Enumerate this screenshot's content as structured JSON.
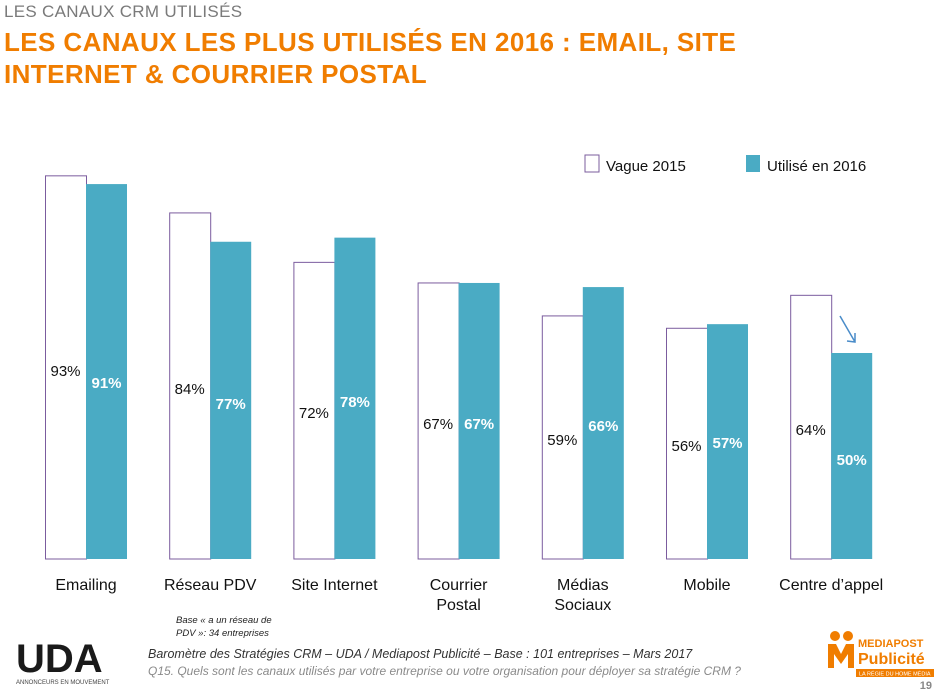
{
  "header": {
    "subtitle": "LES CANAUX CRM UTILISÉS",
    "title": "LES  CANAUX LES PLUS UTILISÉS EN 2016 : EMAIL, SITE\nINTERNET & COURRIER POSTAL"
  },
  "colors": {
    "accent": "#f07d00",
    "bar2016": "#4aabc4",
    "bar2015_border": "#7b5c9e",
    "label2016": "#ffffff",
    "arrow": "#4a8cc9"
  },
  "chart_data": {
    "type": "bar",
    "title": "",
    "categories": [
      "Emailing",
      "Réseau PDV",
      "Site Internet",
      "Courrier\nPostal",
      "Médias\nSociaux",
      "Mobile",
      "Centre d’appel"
    ],
    "series": [
      {
        "name": "Vague 2015",
        "values": [
          93,
          84,
          72,
          67,
          59,
          56,
          64
        ],
        "labels": [
          "93%",
          "84%",
          "72%",
          "67%",
          "59%",
          "56%",
          "64%"
        ]
      },
      {
        "name": "Utilisé en 2016",
        "values": [
          91,
          77,
          78,
          67,
          66,
          57,
          50
        ],
        "labels": [
          "91%",
          "77%",
          "78%",
          "67%",
          "66%",
          "57%",
          "50%"
        ]
      }
    ],
    "ylim": [
      0,
      100
    ],
    "legend_position": "top-right",
    "grid": false,
    "annotations": [
      "down-arrow on Centre d’appel"
    ]
  },
  "footer": {
    "base_note": "Base « a un réseau de\nPDV »: 34 entreprises",
    "source": "Baromètre des Stratégies CRM – UDA / Mediapost Publicité – Base : 101 entreprises – Mars 2017",
    "question": "Q15. Quels sont les canaux utilisés par votre entreprise ou votre organisation pour déployer sa stratégie CRM ?",
    "page": "19"
  },
  "logos": {
    "uda_text": "UDA",
    "uda_tagline": "ANNONCEURS EN MOUVEMENT",
    "mediapost_line1": "MEDIAPOST",
    "mediapost_line2": "Publicité",
    "mediapost_tagline": "LA RÉGIE DU HOME MÉDIA"
  }
}
